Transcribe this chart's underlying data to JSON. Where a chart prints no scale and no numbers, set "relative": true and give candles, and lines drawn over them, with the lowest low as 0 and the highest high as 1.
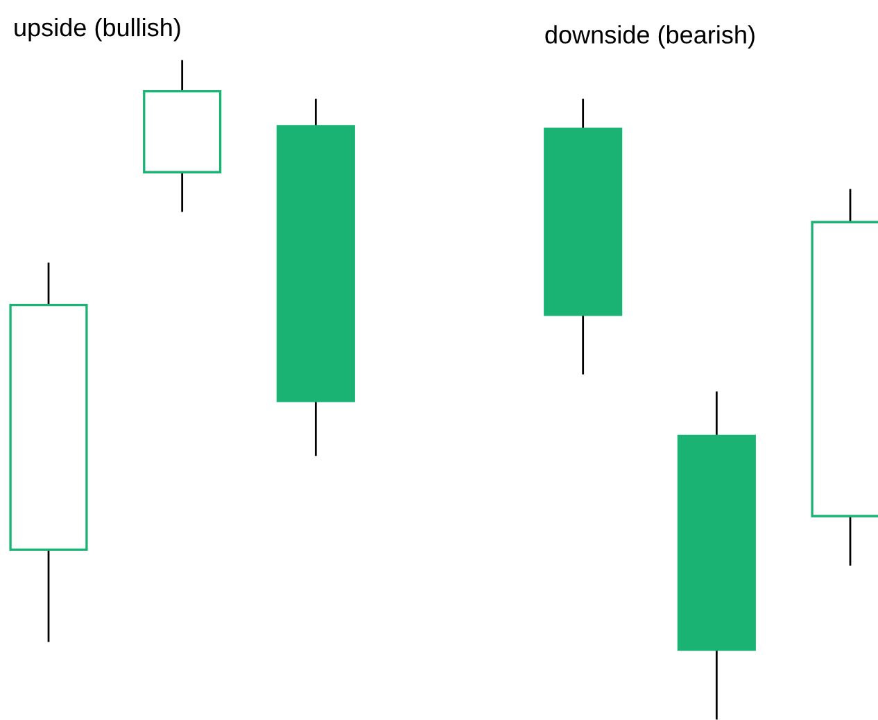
{
  "chart_data": {
    "type": "candlestick",
    "relative": true,
    "categories": [
      null,
      null,
      null,
      null,
      null,
      null,
      null
    ],
    "ohlc": [
      [
        0.257,
        0.692,
        0.118,
        0.629
      ],
      [
        0.831,
        1,
        0.772,
        0.954
      ],
      [
        0.901,
        0.941,
        0.401,
        0.483
      ],
      null,
      [
        0.897,
        0.941,
        0.525,
        0.614
      ],
      [
        0.43,
        0.496,
        0,
        0.105
      ],
      [
        0.308,
        0.804,
        0.234,
        0.755
      ]
    ],
    "colors": [
      "#1ab373",
      "#1ab373",
      "#1ab373",
      null,
      "#1ab373",
      "#1ab373",
      "#1ab373"
    ],
    "annotations": [
      "upside (bullish)",
      "downside (bearish)"
    ]
  }
}
